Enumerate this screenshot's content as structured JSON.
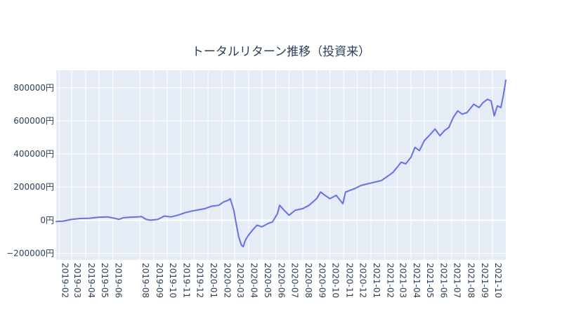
{
  "chart_data": {
    "type": "line",
    "title": "トータルリターン推移（投資来）",
    "xlabel": "",
    "ylabel": "",
    "x_ticks": [
      "2019-02",
      "2019-03",
      "2019-04",
      "2019-05",
      "2019-06",
      "2019-08",
      "2019-09",
      "2019-10",
      "2019-11",
      "2019-12",
      "2020-01",
      "2020-02",
      "2020-03",
      "2020-04",
      "2020-05",
      "2020-06",
      "2020-07",
      "2020-08",
      "2020-09",
      "2020-10",
      "2020-11",
      "2020-12",
      "2021-01",
      "2021-02",
      "2021-03",
      "2021-04",
      "2021-05",
      "2021-06",
      "2021-07",
      "2021-08",
      "2021-09",
      "2021-10"
    ],
    "y_ticks": [
      {
        "value": -200000,
        "label": "−200000円"
      },
      {
        "value": 0,
        "label": "0円"
      },
      {
        "value": 200000,
        "label": "200000円"
      },
      {
        "value": 400000,
        "label": "400000円"
      },
      {
        "value": 600000,
        "label": "600000円"
      },
      {
        "value": 800000,
        "label": "800000円"
      }
    ],
    "ylim": [
      -240000,
      905000
    ],
    "xlim": [
      "2019-01-25",
      "2021-10-31"
    ],
    "grid": true,
    "series": [
      {
        "color": "#636efa",
        "points": [
          [
            "2019-01-25",
            -8000
          ],
          [
            "2019-02-10",
            -5000
          ],
          [
            "2019-03-01",
            5000
          ],
          [
            "2019-03-20",
            10000
          ],
          [
            "2019-04-10",
            12000
          ],
          [
            "2019-05-01",
            18000
          ],
          [
            "2019-05-20",
            20000
          ],
          [
            "2019-06-05",
            12000
          ],
          [
            "2019-06-15",
            5000
          ],
          [
            "2019-06-25",
            15000
          ],
          [
            "2019-07-10",
            18000
          ],
          [
            "2019-07-25",
            20000
          ],
          [
            "2019-08-05",
            22000
          ],
          [
            "2019-08-15",
            5000
          ],
          [
            "2019-08-25",
            0
          ],
          [
            "2019-09-10",
            5000
          ],
          [
            "2019-09-25",
            25000
          ],
          [
            "2019-10-10",
            20000
          ],
          [
            "2019-10-25",
            30000
          ],
          [
            "2019-11-10",
            45000
          ],
          [
            "2019-11-25",
            55000
          ],
          [
            "2019-12-10",
            62000
          ],
          [
            "2019-12-25",
            70000
          ],
          [
            "2020-01-10",
            85000
          ],
          [
            "2020-01-25",
            90000
          ],
          [
            "2020-02-05",
            110000
          ],
          [
            "2020-02-15",
            120000
          ],
          [
            "2020-02-20",
            130000
          ],
          [
            "2020-02-28",
            60000
          ],
          [
            "2020-03-05",
            -30000
          ],
          [
            "2020-03-10",
            -100000
          ],
          [
            "2020-03-16",
            -150000
          ],
          [
            "2020-03-20",
            -160000
          ],
          [
            "2020-03-25",
            -120000
          ],
          [
            "2020-04-01",
            -90000
          ],
          [
            "2020-04-10",
            -60000
          ],
          [
            "2020-04-20",
            -30000
          ],
          [
            "2020-05-01",
            -40000
          ],
          [
            "2020-05-15",
            -20000
          ],
          [
            "2020-05-25",
            -10000
          ],
          [
            "2020-06-05",
            40000
          ],
          [
            "2020-06-10",
            90000
          ],
          [
            "2020-06-20",
            60000
          ],
          [
            "2020-07-01",
            30000
          ],
          [
            "2020-07-15",
            60000
          ],
          [
            "2020-08-01",
            70000
          ],
          [
            "2020-08-15",
            90000
          ],
          [
            "2020-09-01",
            130000
          ],
          [
            "2020-09-10",
            170000
          ],
          [
            "2020-09-20",
            150000
          ],
          [
            "2020-10-01",
            130000
          ],
          [
            "2020-10-15",
            150000
          ],
          [
            "2020-10-30",
            100000
          ],
          [
            "2020-11-05",
            170000
          ],
          [
            "2020-11-15",
            180000
          ],
          [
            "2020-11-25",
            190000
          ],
          [
            "2020-12-10",
            210000
          ],
          [
            "2020-12-25",
            220000
          ],
          [
            "2021-01-10",
            230000
          ],
          [
            "2021-01-25",
            240000
          ],
          [
            "2021-02-10",
            270000
          ],
          [
            "2021-02-20",
            290000
          ],
          [
            "2021-03-01",
            320000
          ],
          [
            "2021-03-10",
            350000
          ],
          [
            "2021-03-20",
            340000
          ],
          [
            "2021-04-01",
            380000
          ],
          [
            "2021-04-10",
            440000
          ],
          [
            "2021-04-20",
            420000
          ],
          [
            "2021-05-01",
            480000
          ],
          [
            "2021-05-15",
            520000
          ],
          [
            "2021-05-25",
            550000
          ],
          [
            "2021-06-05",
            510000
          ],
          [
            "2021-06-15",
            540000
          ],
          [
            "2021-06-25",
            560000
          ],
          [
            "2021-07-05",
            620000
          ],
          [
            "2021-07-15",
            660000
          ],
          [
            "2021-07-25",
            640000
          ],
          [
            "2021-08-05",
            650000
          ],
          [
            "2021-08-20",
            700000
          ],
          [
            "2021-09-01",
            680000
          ],
          [
            "2021-09-10",
            710000
          ],
          [
            "2021-09-20",
            730000
          ],
          [
            "2021-09-28",
            720000
          ],
          [
            "2021-10-05",
            630000
          ],
          [
            "2021-10-12",
            690000
          ],
          [
            "2021-10-20",
            680000
          ],
          [
            "2021-10-26",
            760000
          ],
          [
            "2021-10-31",
            845000
          ]
        ]
      }
    ]
  }
}
